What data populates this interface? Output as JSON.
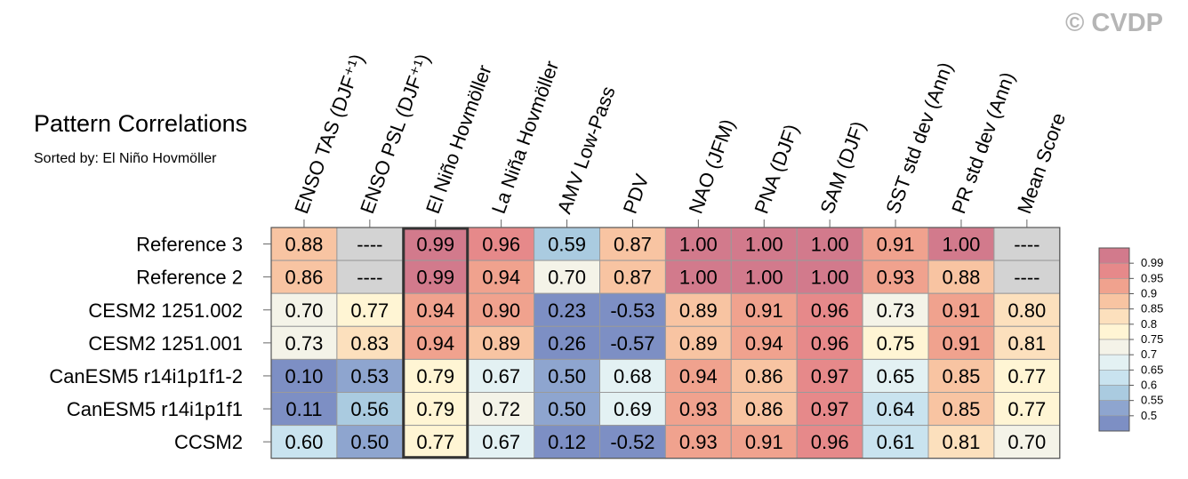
{
  "watermark": "© CVDP",
  "chart_data": {
    "type": "heatmap",
    "title": "Pattern Correlations",
    "subtitle": "Sorted by: El Niño Hovmöller",
    "columns": [
      "ENSO TAS (DJF⁺¹)",
      "ENSO PSL (DJF⁺¹)",
      "El Niño Hovmöller",
      "La Niña Hovmöller",
      "AMV Low-Pass",
      "PDV",
      "NAO (JFM)",
      "PNA (DJF)",
      "SAM (DJF)",
      "SST std dev (Ann)",
      "PR std dev (Ann)",
      "Mean Score"
    ],
    "rows": [
      "Reference 3",
      "Reference 2",
      "CESM2 1251.002",
      "CESM2 1251.001",
      "CanESM5 r14i1p1f1-2",
      "CanESM5 r14i1p1f1",
      "CCSM2"
    ],
    "values": [
      [
        "0.88",
        "----",
        "0.99",
        "0.96",
        "0.59",
        "0.87",
        "1.00",
        "1.00",
        "1.00",
        "0.91",
        "1.00",
        "----"
      ],
      [
        "0.86",
        "----",
        "0.99",
        "0.94",
        "0.70",
        "0.87",
        "1.00",
        "1.00",
        "1.00",
        "0.93",
        "0.88",
        "----"
      ],
      [
        "0.70",
        "0.77",
        "0.94",
        "0.90",
        "0.23",
        "-0.53",
        "0.89",
        "0.91",
        "0.96",
        "0.73",
        "0.91",
        "0.80"
      ],
      [
        "0.73",
        "0.83",
        "0.94",
        "0.89",
        "0.26",
        "-0.57",
        "0.89",
        "0.94",
        "0.96",
        "0.75",
        "0.91",
        "0.81"
      ],
      [
        "0.10",
        "0.53",
        "0.79",
        "0.67",
        "0.50",
        "0.68",
        "0.94",
        "0.86",
        "0.97",
        "0.65",
        "0.85",
        "0.77"
      ],
      [
        "0.11",
        "0.56",
        "0.79",
        "0.72",
        "0.50",
        "0.69",
        "0.93",
        "0.86",
        "0.97",
        "0.64",
        "0.85",
        "0.77"
      ],
      [
        "0.60",
        "0.50",
        "0.77",
        "0.67",
        "0.12",
        "-0.52",
        "0.93",
        "0.91",
        "0.96",
        "0.61",
        "0.81",
        "0.70"
      ]
    ],
    "highlighted_column": "El Niño Hovmöller",
    "missing_color": "#d3d3d3",
    "colorbar": {
      "labels": [
        "0.99",
        "0.95",
        "0.9",
        "0.85",
        "0.8",
        "0.75",
        "0.7",
        "0.65",
        "0.6",
        "0.55",
        "0.5"
      ],
      "colors": [
        "#d27a8c",
        "#e6898a",
        "#f0a28e",
        "#f8c4a2",
        "#fce0bd",
        "#fff5d4",
        "#f4f3e8",
        "#e3f1f3",
        "#c9e3ef",
        "#aacbe0",
        "#8ea5cf",
        "#7d8fc4"
      ]
    }
  }
}
